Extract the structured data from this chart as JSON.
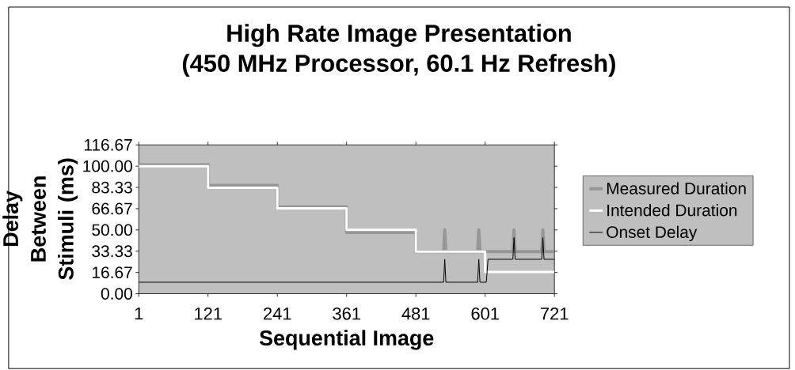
{
  "chart_data": {
    "type": "line",
    "title": "High Rate Image Presentation",
    "subtitle": "(450 MHz Processor, 60.1 Hz Refresh)",
    "xlabel": "Sequential Image",
    "ylabel": "Delay Between Stimuli (ms)",
    "xlim": [
      1,
      721
    ],
    "xticks": [
      1,
      121,
      241,
      361,
      481,
      601,
      721
    ],
    "ylim": [
      0,
      116.67
    ],
    "yticks": [
      {
        "value": 0,
        "label": "0.00"
      },
      16.67,
      33.33,
      {
        "value": 50,
        "label": "50.00"
      },
      66.67,
      83.33,
      {
        "value": 100,
        "label": "100.00"
      },
      116.67
    ],
    "legend": "right",
    "marker": "none",
    "line_style": "solid",
    "series": [
      {
        "name": "Measured Duration",
        "color": "#969696",
        "x": [
          1,
          121,
          121,
          241,
          241,
          361,
          361,
          481,
          481,
          529,
          531,
          533,
          588,
          590,
          592,
          649,
          651,
          653,
          699,
          701,
          703,
          721
        ],
        "values": [
          101,
          101,
          85,
          85,
          68,
          68,
          48,
          48,
          33,
          33,
          50,
          33,
          33,
          50,
          33,
          33,
          50,
          33,
          33,
          50,
          33,
          33
        ]
      },
      {
        "name": "Intended Duration",
        "color": "#ffffff",
        "x": [
          1,
          121,
          121,
          241,
          241,
          361,
          361,
          481,
          481,
          601,
          601,
          721
        ],
        "values": [
          100,
          100,
          83,
          83,
          67,
          67,
          50,
          50,
          33,
          33,
          17,
          17
        ]
      },
      {
        "name": "Onset Delay",
        "color": "#000000",
        "x": [
          1,
          529,
          531,
          533,
          588,
          590,
          592,
          603,
          606,
          649,
          651,
          653,
          699,
          701,
          703,
          721
        ],
        "values": [
          9,
          9,
          27,
          9,
          9,
          27,
          9,
          9,
          27,
          27,
          44,
          27,
          27,
          44,
          27,
          27
        ]
      }
    ]
  }
}
